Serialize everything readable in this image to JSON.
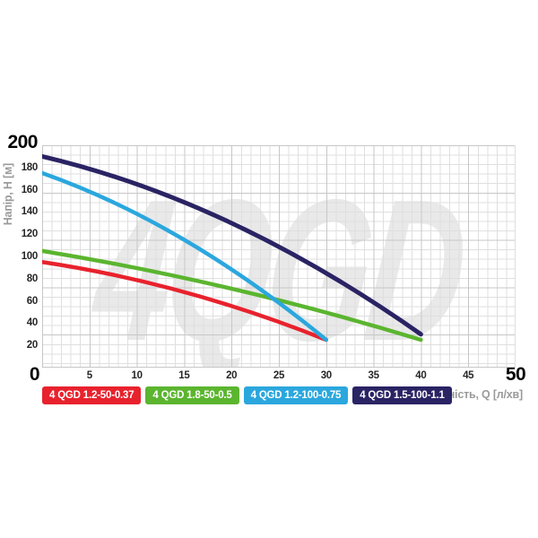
{
  "chart": {
    "watermark": "4QGD",
    "y_axis": {
      "title": "Напір, H [м]",
      "max_label": "200",
      "origin_label": "0",
      "ticks": [
        180,
        160,
        140,
        120,
        100,
        80,
        60,
        40,
        20
      ]
    },
    "x_axis": {
      "title": "Продуктивність, Q [л/хв]",
      "end_label": "50",
      "ticks": [
        5,
        10,
        15,
        20,
        25,
        30,
        35,
        40,
        45
      ]
    }
  },
  "chart_data": {
    "type": "line",
    "title": "",
    "xlabel": "Продуктивність, Q [л/хв]",
    "ylabel": "Напір, H [м]",
    "xlim": [
      0,
      50
    ],
    "ylim": [
      0,
      200
    ],
    "grid": "square minor grid, darker major line every 5 units",
    "legend_position": "bottom",
    "watermark_text": "4QGD",
    "series": [
      {
        "name": "4 QGD 1.2-50-0.37",
        "color": "#e8222d",
        "stroke_px": 4.5,
        "points": [
          [
            0,
            95
          ],
          [
            15,
            68
          ],
          [
            30,
            25
          ]
        ]
      },
      {
        "name": "4 QGD 1.8-50-0.5",
        "color": "#5bb52f",
        "stroke_px": 4.5,
        "points": [
          [
            0,
            105
          ],
          [
            20,
            71
          ],
          [
            40,
            25
          ]
        ]
      },
      {
        "name": "4 QGD 1.2-100-0.75",
        "color": "#2ba7de",
        "stroke_px": 4.5,
        "points": [
          [
            0,
            175
          ],
          [
            15,
            115
          ],
          [
            30,
            25
          ]
        ]
      },
      {
        "name": "4 QGD 1.5-100-1.1",
        "color": "#2a2364",
        "stroke_px": 5,
        "points": [
          [
            0,
            190
          ],
          [
            20,
            130
          ],
          [
            40,
            30
          ]
        ]
      }
    ]
  }
}
